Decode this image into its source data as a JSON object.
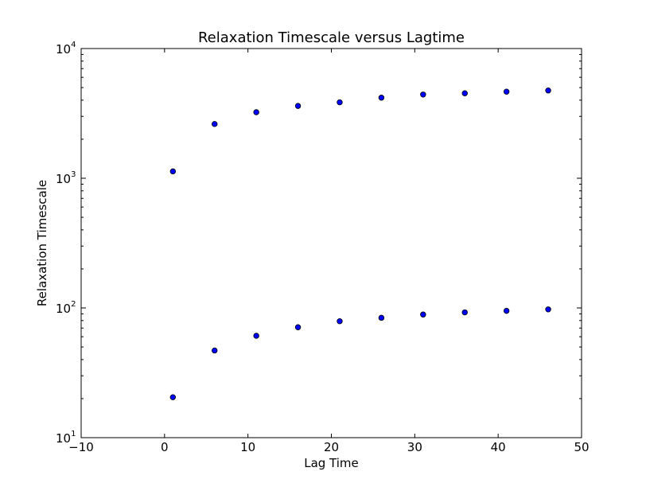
{
  "chart_data": {
    "type": "scatter",
    "title": "Relaxation Timescale versus Lagtime",
    "xlabel": "Lag Time",
    "ylabel": "Relaxation Timescale",
    "xlim": [
      -10,
      50
    ],
    "ylim": [
      10,
      10000
    ],
    "yscale": "log",
    "xticks": [
      {
        "value": -10,
        "label": "−10"
      },
      {
        "value": 0,
        "label": "0"
      },
      {
        "value": 10,
        "label": "10"
      },
      {
        "value": 20,
        "label": "20"
      },
      {
        "value": 30,
        "label": "30"
      },
      {
        "value": 40,
        "label": "40"
      },
      {
        "value": 50,
        "label": "50"
      }
    ],
    "yticks": [
      {
        "value": 10,
        "base": "10",
        "exp": "1"
      },
      {
        "value": 100,
        "base": "10",
        "exp": "2"
      },
      {
        "value": 1000,
        "base": "10",
        "exp": "3"
      },
      {
        "value": 10000,
        "base": "10",
        "exp": "4"
      }
    ],
    "grid": false,
    "legend": false,
    "marker_color": "#0000ff",
    "marker_edge_color": "#000000",
    "series": [
      {
        "x": [
          1,
          6,
          11,
          16,
          21,
          26,
          31,
          36,
          41,
          46
        ],
        "y": [
          1130,
          2620,
          3230,
          3610,
          3850,
          4180,
          4420,
          4520,
          4650,
          4750
        ]
      },
      {
        "x": [
          1,
          6,
          11,
          16,
          21,
          26,
          31,
          36,
          41,
          46
        ],
        "y": [
          20.5,
          47,
          61,
          71,
          79,
          84,
          89,
          92.5,
          95,
          97.5
        ]
      }
    ]
  }
}
